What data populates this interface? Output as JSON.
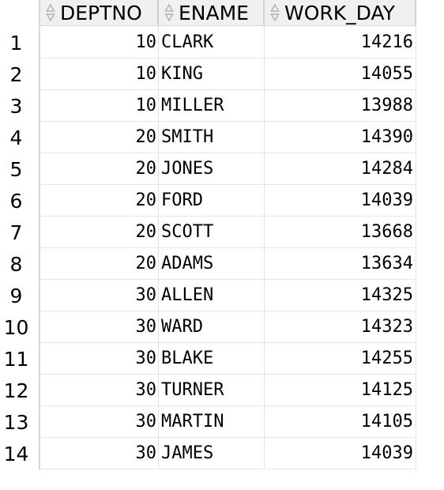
{
  "grid": {
    "columns": [
      {
        "key": "deptno",
        "label": "DEPTNO",
        "icon": "sort-icon"
      },
      {
        "key": "ename",
        "label": "ENAME",
        "icon": "sort-icon"
      },
      {
        "key": "work_day",
        "label": "WORK_DAY",
        "icon": "sort-icon"
      }
    ],
    "rows": [
      {
        "num": "1",
        "deptno": "10",
        "ename": "CLARK",
        "work_day": "14216"
      },
      {
        "num": "2",
        "deptno": "10",
        "ename": "KING",
        "work_day": "14055"
      },
      {
        "num": "3",
        "deptno": "10",
        "ename": "MILLER",
        "work_day": "13988"
      },
      {
        "num": "4",
        "deptno": "20",
        "ename": "SMITH",
        "work_day": "14390"
      },
      {
        "num": "5",
        "deptno": "20",
        "ename": "JONES",
        "work_day": "14284"
      },
      {
        "num": "6",
        "deptno": "20",
        "ename": "FORD",
        "work_day": "14039"
      },
      {
        "num": "7",
        "deptno": "20",
        "ename": "SCOTT",
        "work_day": "13668"
      },
      {
        "num": "8",
        "deptno": "20",
        "ename": "ADAMS",
        "work_day": "13634"
      },
      {
        "num": "9",
        "deptno": "30",
        "ename": "ALLEN",
        "work_day": "14325"
      },
      {
        "num": "10",
        "deptno": "30",
        "ename": "WARD",
        "work_day": "14323"
      },
      {
        "num": "11",
        "deptno": "30",
        "ename": "BLAKE",
        "work_day": "14255"
      },
      {
        "num": "12",
        "deptno": "30",
        "ename": "TURNER",
        "work_day": "14125"
      },
      {
        "num": "13",
        "deptno": "30",
        "ename": "MARTIN",
        "work_day": "14105"
      },
      {
        "num": "14",
        "deptno": "30",
        "ename": "JAMES",
        "work_day": "14039"
      }
    ]
  }
}
